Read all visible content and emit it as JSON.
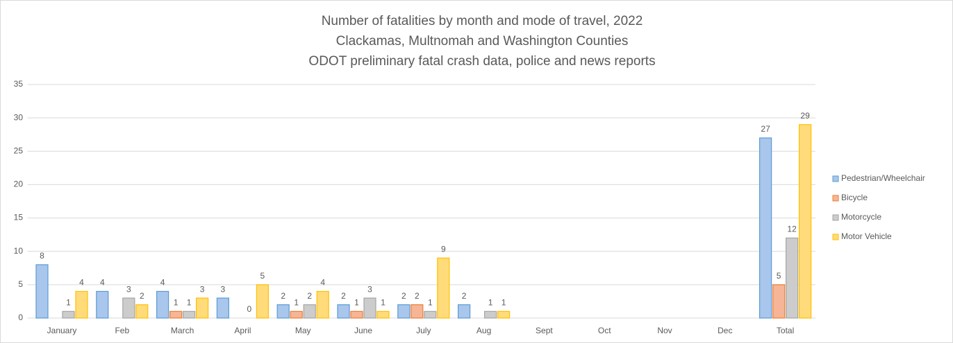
{
  "chart_data": {
    "type": "bar",
    "title": [
      "Number of fatalities by month and mode of travel, 2022",
      "Clackamas, Multnomah and Washington Counties",
      "ODOT preliminary fatal crash data, police and news reports"
    ],
    "categories": [
      "January",
      "Feb",
      "March",
      "April",
      "May",
      "June",
      "July",
      "Aug",
      "Sept",
      "Oct",
      "Nov",
      "Dec",
      "Total"
    ],
    "series": [
      {
        "name": "Pedestrian/Wheelchair",
        "color": "#a9c6ec",
        "edge": "#5b9bd5",
        "values": [
          8,
          4,
          4,
          3,
          2,
          2,
          2,
          2,
          null,
          null,
          null,
          null,
          27
        ]
      },
      {
        "name": "Bicycle",
        "color": "#f6b596",
        "edge": "#ed7d31",
        "values": [
          null,
          null,
          1,
          null,
          1,
          1,
          2,
          null,
          null,
          null,
          null,
          null,
          5
        ]
      },
      {
        "name": "Motorcycle",
        "color": "#cccccc",
        "edge": "#a5a5a5",
        "values": [
          1,
          3,
          1,
          0,
          2,
          3,
          1,
          1,
          null,
          null,
          null,
          null,
          12
        ]
      },
      {
        "name": "Motor Vehicle",
        "color": "#ffdb7a",
        "edge": "#ffc000",
        "values": [
          4,
          2,
          3,
          5,
          4,
          1,
          9,
          1,
          null,
          null,
          null,
          null,
          29
        ]
      }
    ],
    "ylim": [
      0,
      35
    ],
    "yticks": [
      0,
      5,
      10,
      15,
      20,
      25,
      30,
      35
    ],
    "grid": true,
    "legend": "right"
  }
}
